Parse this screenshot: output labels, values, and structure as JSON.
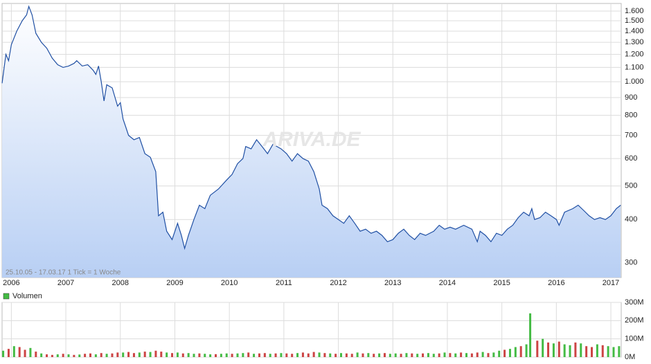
{
  "chart_data": [
    {
      "type": "line",
      "subtitle": "25.10.05 - 17.03.17   1 Tick = 1 Woche",
      "watermark": "ARIVA.DE",
      "log_scale": true,
      "grid": true,
      "color": "#1f4fa3",
      "xlim": [
        2005.83,
        2017.19
      ],
      "xticks": [
        2006,
        2007,
        2008,
        2009,
        2010,
        2011,
        2012,
        2013,
        2014,
        2015,
        2016,
        2017
      ],
      "ylim": [
        272,
        1683
      ],
      "yticks": [
        300,
        400,
        500,
        600,
        700,
        800,
        900,
        {
          "value": 1000,
          "label": "1.000"
        },
        {
          "value": 1100,
          "label": "1.100"
        },
        {
          "value": 1200,
          "label": "1.200"
        },
        {
          "value": 1300,
          "label": "1.300"
        },
        {
          "value": 1400,
          "label": "1.400"
        },
        {
          "value": 1500,
          "label": "1.500"
        },
        {
          "value": 1600,
          "label": "1.600"
        }
      ],
      "x": [
        2005.83,
        2005.9,
        2005.95,
        2006.0,
        2006.1,
        2006.2,
        2006.28,
        2006.32,
        2006.38,
        2006.45,
        2006.55,
        2006.65,
        2006.75,
        2006.85,
        2006.95,
        2007.05,
        2007.15,
        2007.2,
        2007.3,
        2007.4,
        2007.5,
        2007.55,
        2007.6,
        2007.65,
        2007.7,
        2007.75,
        2007.85,
        2007.95,
        2008.0,
        2008.05,
        2008.1,
        2008.15,
        2008.25,
        2008.35,
        2008.45,
        2008.55,
        2008.65,
        2008.7,
        2008.78,
        2008.85,
        2008.95,
        2009.05,
        2009.12,
        2009.18,
        2009.25,
        2009.35,
        2009.45,
        2009.55,
        2009.65,
        2009.8,
        2009.95,
        2010.05,
        2010.15,
        2010.25,
        2010.3,
        2010.4,
        2010.5,
        2010.6,
        2010.7,
        2010.8,
        2010.95,
        2011.05,
        2011.15,
        2011.25,
        2011.35,
        2011.45,
        2011.55,
        2011.65,
        2011.7,
        2011.8,
        2011.9,
        2012.0,
        2012.1,
        2012.2,
        2012.3,
        2012.4,
        2012.5,
        2012.6,
        2012.7,
        2012.8,
        2012.9,
        2013.0,
        2013.1,
        2013.2,
        2013.3,
        2013.4,
        2013.5,
        2013.6,
        2013.75,
        2013.85,
        2013.95,
        2014.05,
        2014.15,
        2014.3,
        2014.45,
        2014.55,
        2014.6,
        2014.7,
        2014.8,
        2014.9,
        2015.0,
        2015.1,
        2015.2,
        2015.3,
        2015.4,
        2015.5,
        2015.55,
        2015.6,
        2015.7,
        2015.8,
        2015.9,
        2016.0,
        2016.05,
        2016.15,
        2016.3,
        2016.4,
        2016.5,
        2016.6,
        2016.7,
        2016.8,
        2016.9,
        2017.0,
        2017.1,
        2017.18
      ],
      "values": [
        990,
        1200,
        1150,
        1280,
        1400,
        1500,
        1560,
        1650,
        1560,
        1380,
        1300,
        1250,
        1170,
        1120,
        1100,
        1110,
        1130,
        1150,
        1110,
        1120,
        1080,
        1050,
        1110,
        1000,
        880,
        980,
        960,
        850,
        870,
        780,
        740,
        700,
        680,
        690,
        620,
        605,
        550,
        410,
        420,
        370,
        350,
        390,
        360,
        330,
        360,
        400,
        440,
        430,
        470,
        490,
        520,
        540,
        580,
        600,
        650,
        640,
        680,
        650,
        620,
        660,
        640,
        620,
        590,
        620,
        600,
        590,
        550,
        490,
        440,
        430,
        410,
        400,
        390,
        410,
        390,
        370,
        375,
        365,
        370,
        360,
        345,
        350,
        365,
        375,
        360,
        350,
        365,
        360,
        370,
        385,
        375,
        380,
        375,
        385,
        375,
        345,
        370,
        360,
        345,
        365,
        360,
        375,
        385,
        405,
        420,
        410,
        430,
        400,
        405,
        420,
        410,
        400,
        385,
        420,
        430,
        440,
        425,
        410,
        400,
        405,
        400,
        410,
        430,
        440
      ]
    },
    {
      "type": "bar",
      "grid": true,
      "xlim": [
        2005.83,
        2017.19
      ],
      "xticks": [
        2006,
        2007,
        2008,
        2009,
        2010,
        2011,
        2012,
        2013,
        2014,
        2015,
        2016,
        2017
      ],
      "ylim": [
        0,
        300
      ],
      "yticks": [
        {
          "value": 0,
          "label": "0M"
        },
        {
          "value": 100,
          "label": "100M"
        },
        {
          "value": 200,
          "label": "200M"
        },
        {
          "value": 300,
          "label": "300M"
        }
      ],
      "series": [
        {
          "name": "Volumen",
          "color": "#44bb44",
          "x": [
            2005.85,
            2005.95,
            2006.05,
            2006.15,
            2006.25,
            2006.35,
            2006.45,
            2006.55,
            2006.65,
            2006.75,
            2006.85,
            2006.95,
            2007.05,
            2007.15,
            2007.25,
            2007.35,
            2007.45,
            2007.55,
            2007.65,
            2007.75,
            2007.85,
            2007.95,
            2008.05,
            2008.15,
            2008.25,
            2008.35,
            2008.45,
            2008.55,
            2008.65,
            2008.75,
            2008.85,
            2008.95,
            2009.05,
            2009.15,
            2009.25,
            2009.35,
            2009.45,
            2009.55,
            2009.65,
            2009.75,
            2009.85,
            2009.95,
            2010.05,
            2010.15,
            2010.25,
            2010.35,
            2010.45,
            2010.55,
            2010.65,
            2010.75,
            2010.85,
            2010.95,
            2011.05,
            2011.15,
            2011.25,
            2011.35,
            2011.45,
            2011.55,
            2011.65,
            2011.75,
            2011.85,
            2011.95,
            2012.05,
            2012.15,
            2012.25,
            2012.35,
            2012.45,
            2012.55,
            2012.65,
            2012.75,
            2012.85,
            2012.95,
            2013.05,
            2013.15,
            2013.25,
            2013.35,
            2013.45,
            2013.55,
            2013.65,
            2013.75,
            2013.85,
            2013.95,
            2014.05,
            2014.15,
            2014.25,
            2014.35,
            2014.45,
            2014.55,
            2014.65,
            2014.75,
            2014.85,
            2014.95,
            2015.05,
            2015.15,
            2015.25,
            2015.35,
            2015.45,
            2015.52,
            2015.65,
            2015.75,
            2015.85,
            2015.95,
            2016.05,
            2016.15,
            2016.25,
            2016.35,
            2016.45,
            2016.55,
            2016.65,
            2016.75,
            2016.85,
            2016.95,
            2017.05,
            2017.15
          ],
          "values": [
            35,
            45,
            60,
            55,
            40,
            50,
            30,
            20,
            15,
            12,
            15,
            18,
            15,
            12,
            14,
            18,
            20,
            15,
            22,
            18,
            20,
            25,
            25,
            28,
            22,
            25,
            30,
            28,
            35,
            30,
            25,
            22,
            25,
            20,
            22,
            18,
            20,
            18,
            15,
            16,
            18,
            20,
            18,
            20,
            22,
            25,
            18,
            20,
            22,
            18,
            20,
            22,
            20,
            18,
            22,
            25,
            20,
            28,
            25,
            22,
            20,
            18,
            22,
            20,
            18,
            25,
            20,
            22,
            18,
            20,
            22,
            18,
            20,
            18,
            22,
            20,
            18,
            20,
            22,
            18,
            20,
            25,
            22,
            20,
            25,
            22,
            20,
            25,
            28,
            22,
            25,
            35,
            40,
            45,
            55,
            60,
            70,
            240,
            90,
            100,
            80,
            75,
            85,
            70,
            65,
            80,
            75,
            60,
            55,
            70,
            65,
            60,
            55,
            60
          ],
          "colors": [
            "#44bb44",
            "#cc4444",
            "#44bb44",
            "#cc4444",
            "#cc4444",
            "#44bb44",
            "#cc4444",
            "#44bb44",
            "#cc4444",
            "#cc4444",
            "#44bb44",
            "#cc4444",
            "#44bb44",
            "#cc4444",
            "#44bb44",
            "#cc4444",
            "#cc4444",
            "#44bb44",
            "#cc4444",
            "#44bb44",
            "#cc4444",
            "#cc4444",
            "#44bb44",
            "#cc4444",
            "#cc4444",
            "#44bb44",
            "#cc4444",
            "#44bb44",
            "#cc4444",
            "#cc4444",
            "#44bb44",
            "#cc4444",
            "#44bb44",
            "#cc4444",
            "#44bb44",
            "#44bb44",
            "#cc4444",
            "#44bb44",
            "#44bb44",
            "#cc4444",
            "#44bb44",
            "#44bb44",
            "#cc4444",
            "#44bb44",
            "#44bb44",
            "#cc4444",
            "#44bb44",
            "#cc4444",
            "#cc4444",
            "#44bb44",
            "#cc4444",
            "#44bb44",
            "#cc4444",
            "#cc4444",
            "#44bb44",
            "#cc4444",
            "#cc4444",
            "#cc4444",
            "#44bb44",
            "#cc4444",
            "#44bb44",
            "#cc4444",
            "#44bb44",
            "#cc4444",
            "#cc4444",
            "#44bb44",
            "#cc4444",
            "#44bb44",
            "#cc4444",
            "#44bb44",
            "#cc4444",
            "#44bb44",
            "#44bb44",
            "#cc4444",
            "#44bb44",
            "#cc4444",
            "#44bb44",
            "#cc4444",
            "#44bb44",
            "#44bb44",
            "#cc4444",
            "#44bb44",
            "#cc4444",
            "#44bb44",
            "#cc4444",
            "#44bb44",
            "#cc4444",
            "#cc4444",
            "#44bb44",
            "#cc4444",
            "#44bb44",
            "#44bb44",
            "#cc4444",
            "#44bb44",
            "#44bb44",
            "#cc4444",
            "#44bb44",
            "#44bb44",
            "#cc4444",
            "#44bb44",
            "#cc4444",
            "#44bb44",
            "#cc4444",
            "#44bb44",
            "#44bb44",
            "#cc4444",
            "#44bb44",
            "#cc4444",
            "#cc4444",
            "#44bb44",
            "#cc4444",
            "#44bb44",
            "#44bb44",
            "#44bb44"
          ]
        }
      ]
    }
  ]
}
